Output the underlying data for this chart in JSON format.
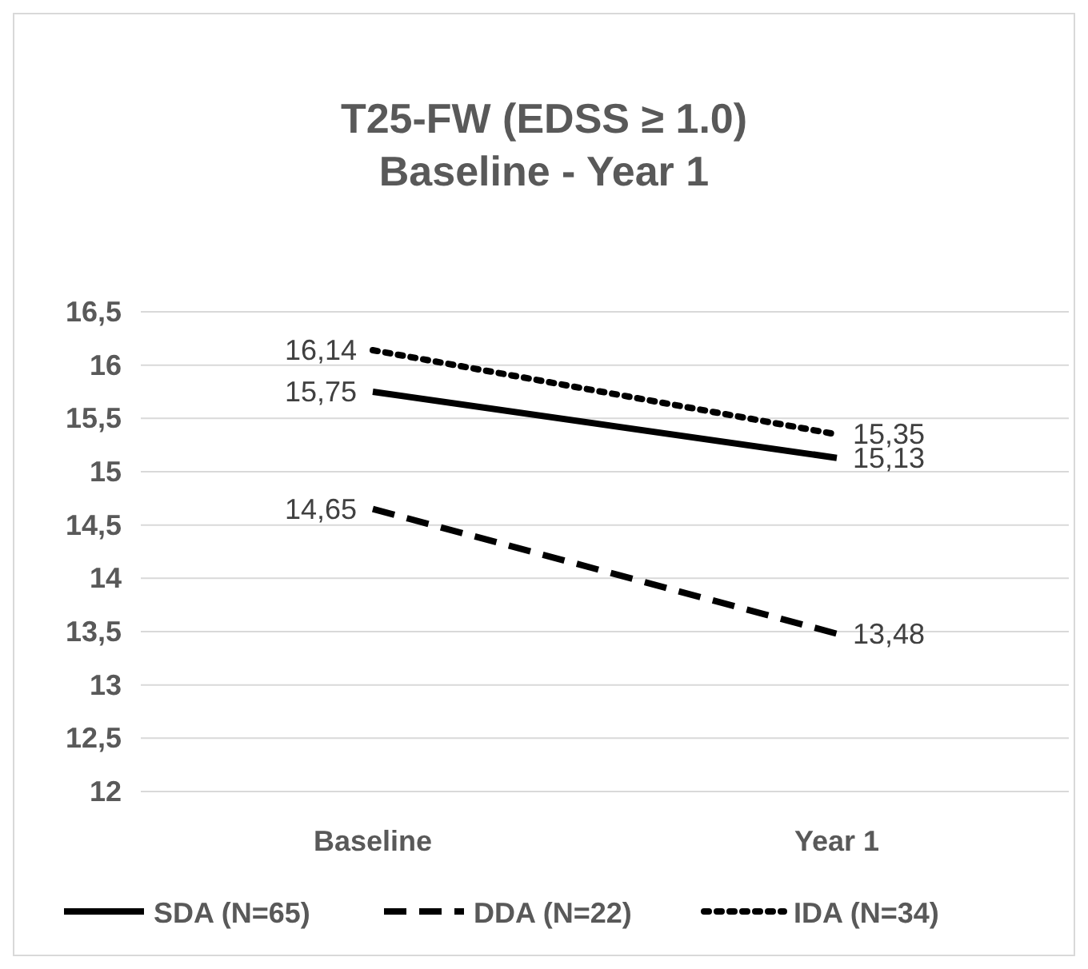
{
  "chart_data": {
    "type": "line",
    "title": "T25-FW (EDSS ≥ 1.0)",
    "subtitle": "Baseline - Year 1",
    "categories": [
      "Baseline",
      "Year 1"
    ],
    "series": [
      {
        "name": "SDA (N=65)",
        "color": "#000000",
        "line_style": "solid",
        "values": [
          15.75,
          15.13
        ],
        "value_labels": [
          "15,75",
          "15,13"
        ]
      },
      {
        "name": "DDA (N=22)",
        "color": "#000000",
        "line_style": "dashed",
        "values": [
          14.65,
          13.48
        ],
        "value_labels": [
          "14,65",
          "13,48"
        ]
      },
      {
        "name": "IDA (N=34)",
        "color": "#000000",
        "line_style": "dotted",
        "values": [
          16.14,
          15.35
        ],
        "value_labels": [
          "16,14",
          "15,35"
        ]
      }
    ],
    "ylim": [
      12,
      16.5
    ],
    "yticks": [
      {
        "value": 12,
        "label": "12"
      },
      {
        "value": 12.5,
        "label": "12,5"
      },
      {
        "value": 13,
        "label": "13"
      },
      {
        "value": 13.5,
        "label": "13,5"
      },
      {
        "value": 14,
        "label": "14"
      },
      {
        "value": 14.5,
        "label": "14,5"
      },
      {
        "value": 15,
        "label": "15"
      },
      {
        "value": 15.5,
        "label": "15,5"
      },
      {
        "value": 16,
        "label": "16"
      },
      {
        "value": 16.5,
        "label": "16,5"
      }
    ],
    "grid": "y",
    "legend": "bottom",
    "marker": "none"
  }
}
